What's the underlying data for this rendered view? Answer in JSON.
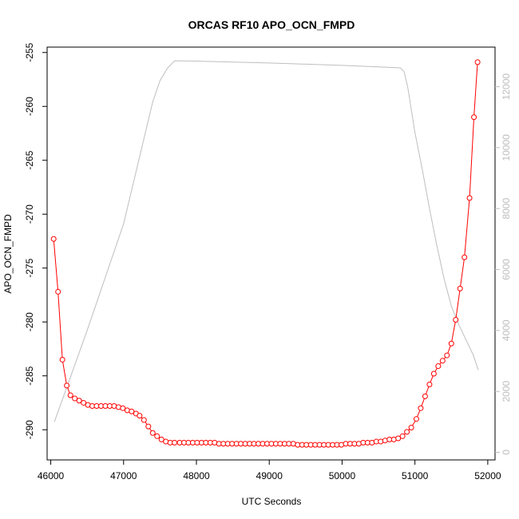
{
  "chart_data": {
    "type": "line",
    "title": "ORCAS RF10 APO_OCN_FMPD",
    "xlabel": "UTC Seconds",
    "ylabel": "APO_OCN_FMPD",
    "xlim": [
      45950,
      52100
    ],
    "ylim": [
      -292.8,
      -254.5
    ],
    "y2lim": [
      -250,
      13300
    ],
    "xticks": [
      46000,
      47000,
      48000,
      49000,
      50000,
      51000,
      52000
    ],
    "yticks": [
      -290,
      -285,
      -280,
      -275,
      -270,
      -265,
      -260,
      -255
    ],
    "y2ticks": [
      0,
      2000,
      4000,
      6000,
      8000,
      10000,
      12000
    ],
    "grid": false,
    "colors": {
      "primary": "#ff0000",
      "secondary": "#bebebe",
      "axis": "#000000",
      "secondary_ticks": "#bdbdbd"
    },
    "series": [
      {
        "axis": "left",
        "style": "line+points",
        "color": "#ff0000",
        "x": [
          46040,
          46100,
          46160,
          46220,
          46270,
          46330,
          46390,
          46450,
          46510,
          46570,
          46630,
          46690,
          46750,
          46810,
          46870,
          46930,
          46990,
          47050,
          47110,
          47170,
          47220,
          47280,
          47340,
          47400,
          47460,
          47520,
          47580,
          47640,
          47700,
          47770,
          47830,
          47890,
          47950,
          48010,
          48070,
          48130,
          48190,
          48250,
          48310,
          48370,
          48430,
          48490,
          48550,
          48610,
          48670,
          48730,
          48790,
          48850,
          48910,
          48970,
          49030,
          49090,
          49150,
          49210,
          49270,
          49330,
          49390,
          49450,
          49510,
          49570,
          49630,
          49690,
          49750,
          49810,
          49870,
          49930,
          49990,
          50050,
          50110,
          50170,
          50230,
          50290,
          50350,
          50410,
          50470,
          50530,
          50590,
          50650,
          50710,
          50770,
          50830,
          50890,
          50950,
          51020,
          51080,
          51140,
          51200,
          51260,
          51320,
          51380,
          51440,
          51500,
          51560,
          51620,
          51680,
          51750,
          51810,
          51860
        ],
        "y": [
          -272.3,
          -277.2,
          -283.5,
          -285.9,
          -286.8,
          -287.1,
          -287.3,
          -287.5,
          -287.7,
          -287.8,
          -287.8,
          -287.8,
          -287.8,
          -287.8,
          -287.8,
          -287.9,
          -288.0,
          -288.2,
          -288.3,
          -288.5,
          -288.7,
          -289.1,
          -289.7,
          -290.3,
          -290.6,
          -290.9,
          -291.1,
          -291.2,
          -291.2,
          -291.2,
          -291.2,
          -291.2,
          -291.2,
          -291.2,
          -291.2,
          -291.2,
          -291.2,
          -291.2,
          -291.3,
          -291.3,
          -291.3,
          -291.3,
          -291.3,
          -291.3,
          -291.3,
          -291.3,
          -291.3,
          -291.3,
          -291.3,
          -291.3,
          -291.3,
          -291.3,
          -291.3,
          -291.3,
          -291.3,
          -291.3,
          -291.4,
          -291.4,
          -291.4,
          -291.4,
          -291.4,
          -291.4,
          -291.4,
          -291.4,
          -291.4,
          -291.4,
          -291.4,
          -291.3,
          -291.3,
          -291.3,
          -291.3,
          -291.2,
          -291.2,
          -291.2,
          -291.1,
          -291.1,
          -291.0,
          -290.9,
          -290.9,
          -290.8,
          -290.6,
          -290.2,
          -289.8,
          -289.0,
          -288.0,
          -286.9,
          -285.8,
          -284.8,
          -284.1,
          -283.6,
          -283.1,
          -282.0,
          -279.8,
          -276.9,
          -274.0,
          -268.5,
          -261.0,
          -255.9
        ]
      },
      {
        "axis": "right",
        "style": "line",
        "color": "#bebebe",
        "x": [
          46050,
          46500,
          47000,
          47400,
          47500,
          47600,
          47700,
          48000,
          49000,
          50000,
          50500,
          50800,
          50850,
          50900,
          51000,
          51100,
          51200,
          51300,
          51400,
          51500,
          51600,
          51700,
          51800,
          51870
        ],
        "y": [
          1000,
          4000,
          7500,
          11500,
          12200,
          12600,
          12850,
          12840,
          12780,
          12700,
          12650,
          12620,
          12500,
          12000,
          10500,
          9300,
          8000,
          6800,
          5700,
          4800,
          4200,
          3700,
          3200,
          2700
        ]
      }
    ]
  }
}
